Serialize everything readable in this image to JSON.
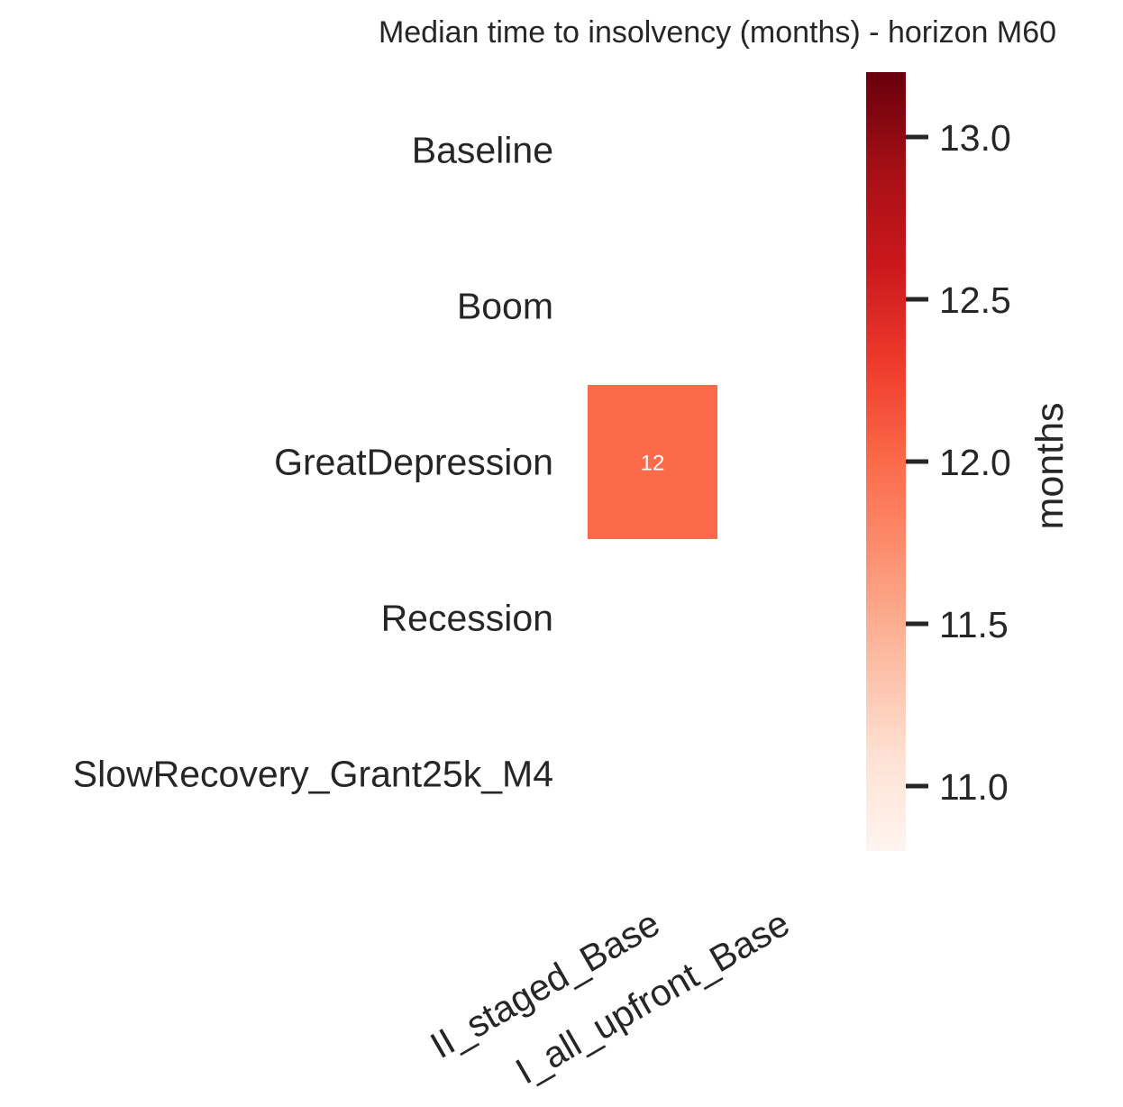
{
  "chart_data": {
    "type": "heatmap",
    "title": "Median time to insolvency (months) - horizon M60",
    "rows": [
      "Baseline",
      "Boom",
      "GreatDepression",
      "Recession",
      "SlowRecovery_Grant25k_M4"
    ],
    "columns": [
      "II_staged_Base",
      "I_all_upfront_Base"
    ],
    "values": [
      [
        null,
        null
      ],
      [
        null,
        null
      ],
      [
        12,
        null
      ],
      [
        null,
        null
      ],
      [
        null,
        null
      ]
    ],
    "cell_labels": [
      [
        "",
        ""
      ],
      [
        "",
        ""
      ],
      [
        "12",
        ""
      ],
      [
        "",
        ""
      ],
      [
        "",
        ""
      ]
    ],
    "colormap": "Reds",
    "colorbar": {
      "label": "months",
      "range": [
        10.8,
        13.2
      ],
      "ticks": [
        11.0,
        11.5,
        12.0,
        12.5,
        13.0
      ],
      "tick_labels": [
        "11.0",
        "11.5",
        "12.0",
        "12.5",
        "13.0"
      ]
    },
    "cell_color": "#fb6a4a",
    "grid": false
  }
}
